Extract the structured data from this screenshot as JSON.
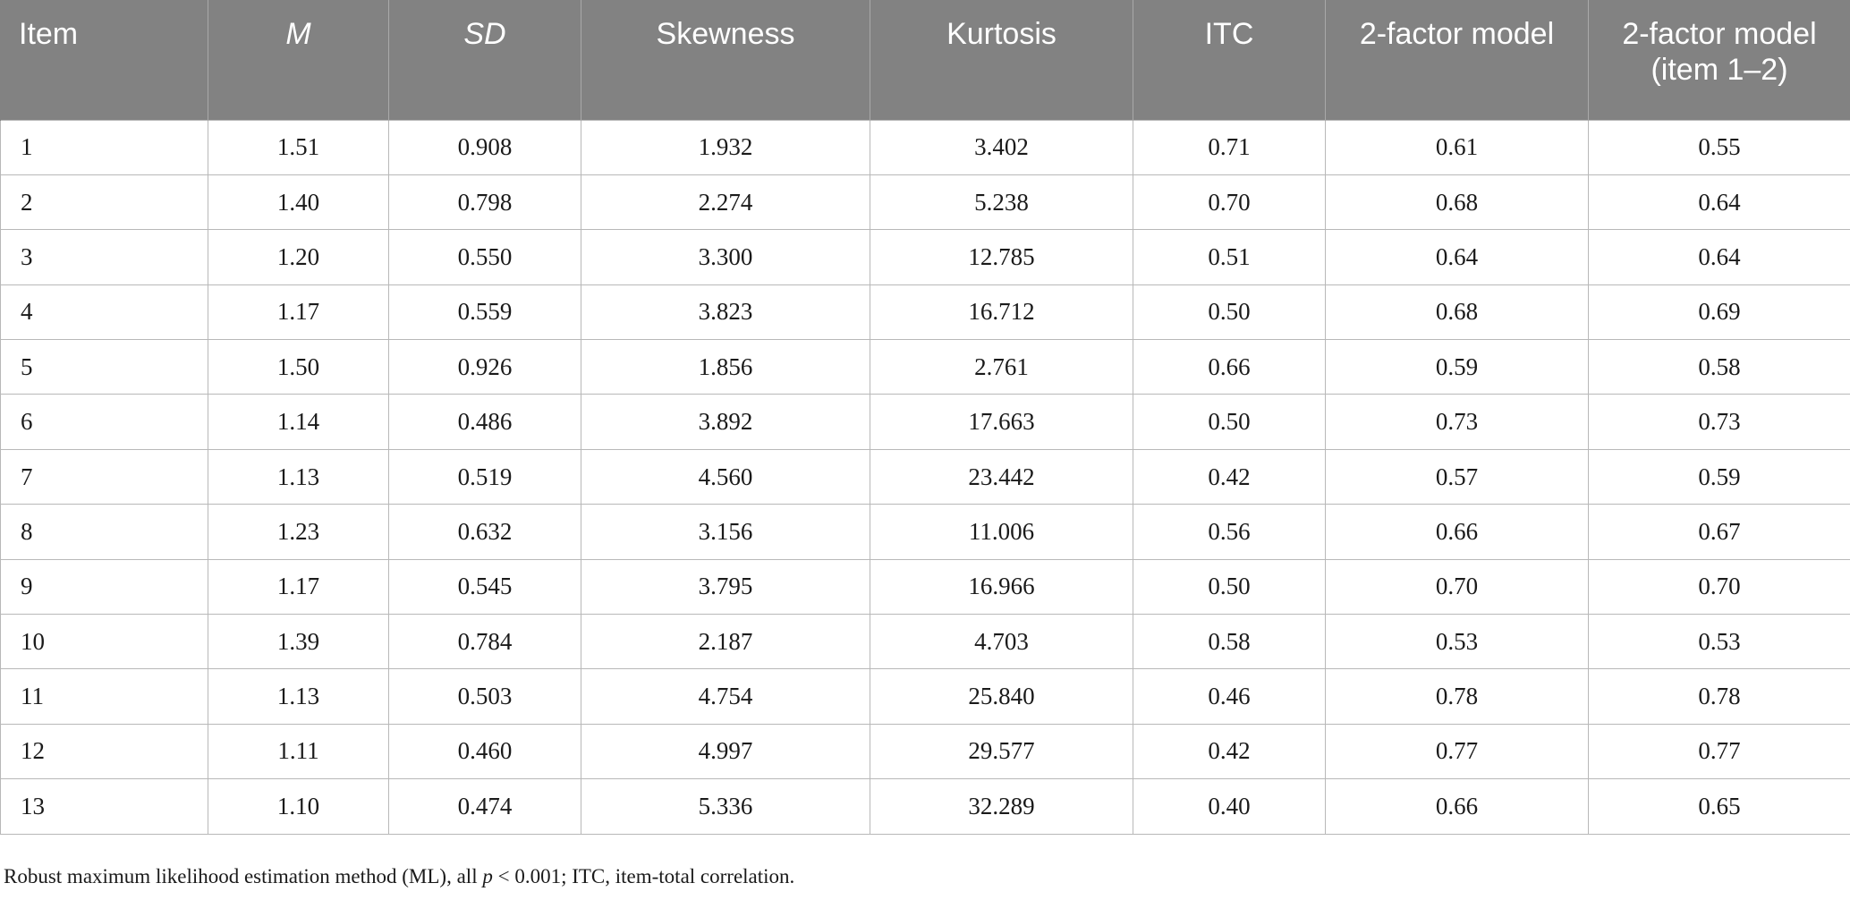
{
  "table": {
    "headers": [
      {
        "label": "Item",
        "italic": false
      },
      {
        "label": "M",
        "italic": true
      },
      {
        "label": "SD",
        "italic": true
      },
      {
        "label": "Skewness",
        "italic": false
      },
      {
        "label": "Kurtosis",
        "italic": false
      },
      {
        "label": "ITC",
        "italic": false
      },
      {
        "label": "2-factor model",
        "italic": false
      },
      {
        "label": "2-factor model (item 1–2)",
        "italic": false
      }
    ],
    "rows": [
      [
        "1",
        "1.51",
        "0.908",
        "1.932",
        "3.402",
        "0.71",
        "0.61",
        "0.55"
      ],
      [
        "2",
        "1.40",
        "0.798",
        "2.274",
        "5.238",
        "0.70",
        "0.68",
        "0.64"
      ],
      [
        "3",
        "1.20",
        "0.550",
        "3.300",
        "12.785",
        "0.51",
        "0.64",
        "0.64"
      ],
      [
        "4",
        "1.17",
        "0.559",
        "3.823",
        "16.712",
        "0.50",
        "0.68",
        "0.69"
      ],
      [
        "5",
        "1.50",
        "0.926",
        "1.856",
        "2.761",
        "0.66",
        "0.59",
        "0.58"
      ],
      [
        "6",
        "1.14",
        "0.486",
        "3.892",
        "17.663",
        "0.50",
        "0.73",
        "0.73"
      ],
      [
        "7",
        "1.13",
        "0.519",
        "4.560",
        "23.442",
        "0.42",
        "0.57",
        "0.59"
      ],
      [
        "8",
        "1.23",
        "0.632",
        "3.156",
        "11.006",
        "0.56",
        "0.66",
        "0.67"
      ],
      [
        "9",
        "1.17",
        "0.545",
        "3.795",
        "16.966",
        "0.50",
        "0.70",
        "0.70"
      ],
      [
        "10",
        "1.39",
        "0.784",
        "2.187",
        "4.703",
        "0.58",
        "0.53",
        "0.53"
      ],
      [
        "11",
        "1.13",
        "0.503",
        "4.754",
        "25.840",
        "0.46",
        "0.78",
        "0.78"
      ],
      [
        "12",
        "1.11",
        "0.460",
        "4.997",
        "29.577",
        "0.42",
        "0.77",
        "0.77"
      ],
      [
        "13",
        "1.10",
        "0.474",
        "5.336",
        "32.289",
        "0.40",
        "0.66",
        "0.65"
      ]
    ]
  },
  "footnote": {
    "before_p": "Robust maximum likelihood estimation method (ML), all ",
    "p_symbol": "p",
    "after_p": " < 0.001; ITC, item-total correlation."
  },
  "colors": {
    "header_background": "#828282",
    "header_text": "#ffffff",
    "grid_lines": "#b8b8b8"
  }
}
